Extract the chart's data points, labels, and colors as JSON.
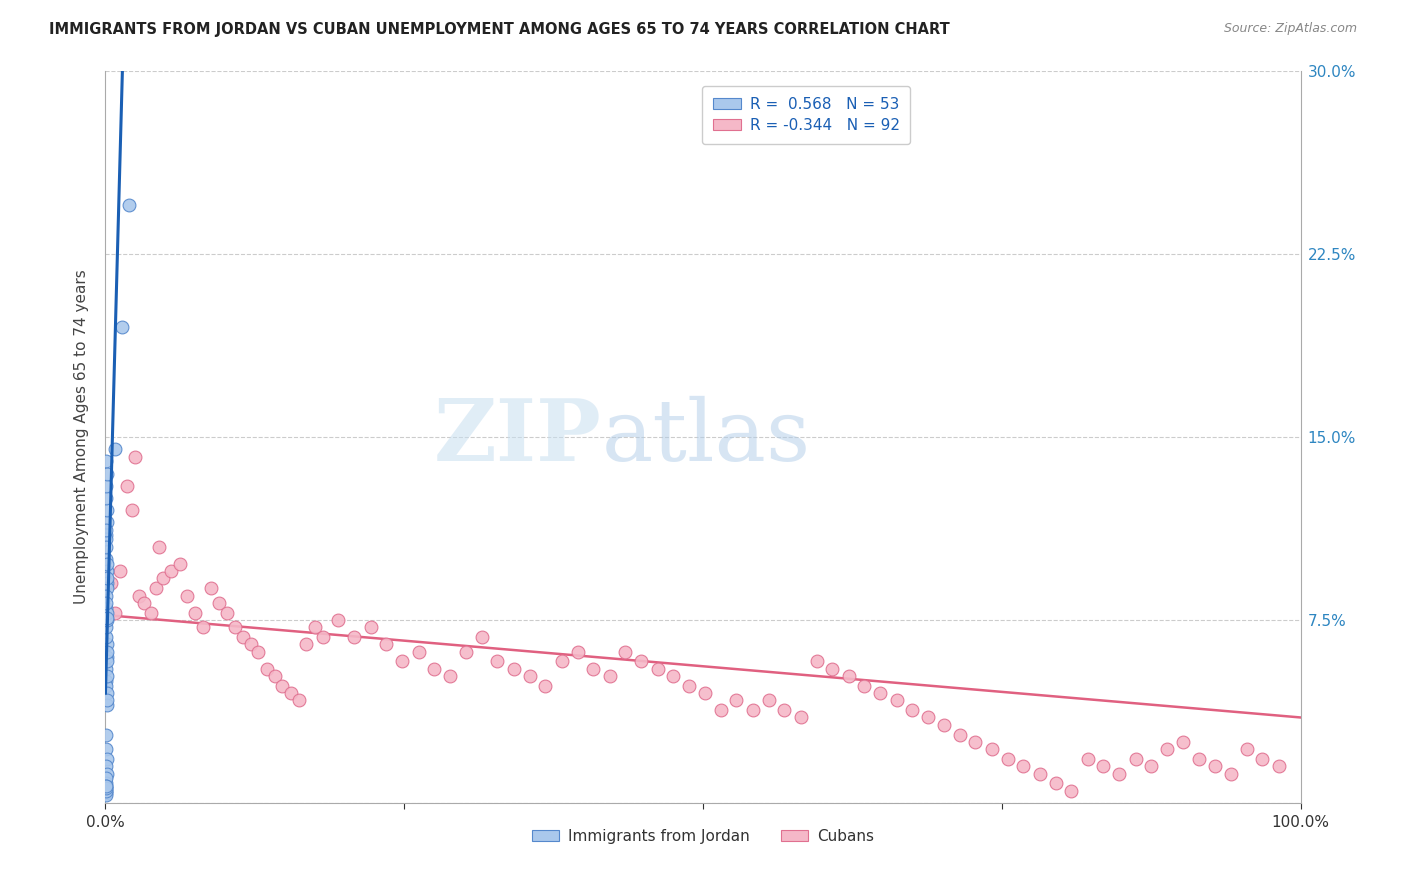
{
  "title": "IMMIGRANTS FROM JORDAN VS CUBAN UNEMPLOYMENT AMONG AGES 65 TO 74 YEARS CORRELATION CHART",
  "source": "Source: ZipAtlas.com",
  "ylabel": "Unemployment Among Ages 65 to 74 years",
  "xlim": [
    0,
    1.0
  ],
  "ylim": [
    0,
    0.3
  ],
  "xticks": [
    0.0,
    0.25,
    0.5,
    0.75,
    1.0
  ],
  "xticklabels": [
    "0.0%",
    "",
    "",
    "",
    "100.0%"
  ],
  "yticks": [
    0.0,
    0.075,
    0.15,
    0.225,
    0.3
  ],
  "yticklabels_right": [
    "",
    "7.5%",
    "15.0%",
    "22.5%",
    "30.0%"
  ],
  "legend_r_jordan": "0.568",
  "legend_n_jordan": "53",
  "legend_r_cuban": "-0.344",
  "legend_n_cuban": "92",
  "jordan_color": "#aac8ec",
  "cuban_color": "#f5b8c8",
  "jordan_edge_color": "#5588cc",
  "cuban_edge_color": "#e07090",
  "jordan_line_color": "#1a5fb4",
  "cuban_line_color": "#e06080",
  "jordan_scatter_x": [
    0.0005,
    0.001,
    0.0008,
    0.0012,
    0.0015,
    0.0006,
    0.0009,
    0.0011,
    0.0007,
    0.0013,
    0.0004,
    0.001,
    0.0014,
    0.0003,
    0.0016,
    0.0005,
    0.0008,
    0.0012,
    0.0006,
    0.0009,
    0.0011,
    0.0007,
    0.0013,
    0.0004,
    0.001,
    0.0005,
    0.0008,
    0.0012,
    0.0006,
    0.0009,
    0.0011,
    0.0007,
    0.0013,
    0.0004,
    0.001,
    0.0005,
    0.0008,
    0.0012,
    0.0006,
    0.0009,
    0.0003,
    0.0004,
    0.0002,
    0.0003,
    0.0004,
    0.0002,
    0.0003,
    0.0004,
    0.0005,
    0.0006,
    0.008,
    0.014,
    0.02
  ],
  "jordan_scatter_y": [
    0.055,
    0.06,
    0.05,
    0.065,
    0.058,
    0.048,
    0.062,
    0.052,
    0.068,
    0.045,
    0.072,
    0.04,
    0.075,
    0.08,
    0.042,
    0.1,
    0.11,
    0.115,
    0.108,
    0.095,
    0.12,
    0.105,
    0.098,
    0.125,
    0.09,
    0.13,
    0.112,
    0.088,
    0.085,
    0.092,
    0.078,
    0.082,
    0.076,
    0.14,
    0.135,
    0.028,
    0.022,
    0.018,
    0.015,
    0.012,
    0.008,
    0.01,
    0.005,
    0.006,
    0.007,
    0.004,
    0.003,
    0.005,
    0.006,
    0.007,
    0.145,
    0.195,
    0.245
  ],
  "cuban_scatter_x": [
    0.005,
    0.008,
    0.012,
    0.018,
    0.022,
    0.028,
    0.032,
    0.038,
    0.042,
    0.048,
    0.055,
    0.062,
    0.068,
    0.075,
    0.082,
    0.088,
    0.095,
    0.102,
    0.108,
    0.115,
    0.122,
    0.128,
    0.135,
    0.142,
    0.148,
    0.155,
    0.162,
    0.168,
    0.175,
    0.182,
    0.195,
    0.208,
    0.222,
    0.235,
    0.248,
    0.262,
    0.275,
    0.288,
    0.302,
    0.315,
    0.328,
    0.342,
    0.355,
    0.368,
    0.382,
    0.395,
    0.408,
    0.422,
    0.435,
    0.448,
    0.462,
    0.475,
    0.488,
    0.502,
    0.515,
    0.528,
    0.542,
    0.555,
    0.568,
    0.582,
    0.595,
    0.608,
    0.622,
    0.635,
    0.648,
    0.662,
    0.675,
    0.688,
    0.702,
    0.715,
    0.728,
    0.742,
    0.755,
    0.768,
    0.782,
    0.795,
    0.808,
    0.822,
    0.835,
    0.848,
    0.862,
    0.875,
    0.888,
    0.902,
    0.915,
    0.928,
    0.942,
    0.955,
    0.968,
    0.982,
    0.025,
    0.045
  ],
  "cuban_scatter_y": [
    0.09,
    0.078,
    0.095,
    0.13,
    0.12,
    0.085,
    0.082,
    0.078,
    0.088,
    0.092,
    0.095,
    0.098,
    0.085,
    0.078,
    0.072,
    0.088,
    0.082,
    0.078,
    0.072,
    0.068,
    0.065,
    0.062,
    0.055,
    0.052,
    0.048,
    0.045,
    0.042,
    0.065,
    0.072,
    0.068,
    0.075,
    0.068,
    0.072,
    0.065,
    0.058,
    0.062,
    0.055,
    0.052,
    0.062,
    0.068,
    0.058,
    0.055,
    0.052,
    0.048,
    0.058,
    0.062,
    0.055,
    0.052,
    0.062,
    0.058,
    0.055,
    0.052,
    0.048,
    0.045,
    0.038,
    0.042,
    0.038,
    0.042,
    0.038,
    0.035,
    0.058,
    0.055,
    0.052,
    0.048,
    0.045,
    0.042,
    0.038,
    0.035,
    0.032,
    0.028,
    0.025,
    0.022,
    0.018,
    0.015,
    0.012,
    0.008,
    0.005,
    0.018,
    0.015,
    0.012,
    0.018,
    0.015,
    0.022,
    0.025,
    0.018,
    0.015,
    0.012,
    0.022,
    0.018,
    0.015,
    0.142,
    0.105
  ]
}
